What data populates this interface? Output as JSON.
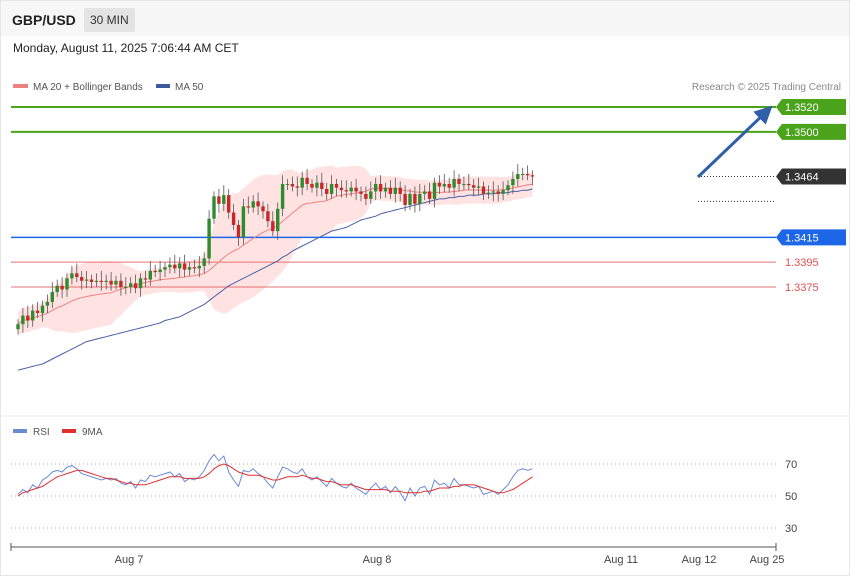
{
  "header": {
    "symbol": "GBP/USD",
    "timeframe": "30 MIN"
  },
  "datetime": "Monday, August 11, 2025 7:06:44 AM CET",
  "legend": {
    "ma20": "MA 20 + Bollinger Bands",
    "ma50": "MA 50",
    "credit": "Research © 2025 Trading Central"
  },
  "rsi_legend": {
    "rsi": "RSI",
    "ma9": "9MA"
  },
  "colors": {
    "up": "#2e8b2e",
    "down": "#c82828",
    "ma20": "#f08080",
    "ma50": "#4a5fa8",
    "band": "#ffd9d9",
    "resistance": "#4aa31a",
    "pivot": "#1e66e8",
    "support": "#e05050",
    "arrow": "#2f5fa8",
    "rsi": "#6a8ad8",
    "rsi_ma": "#e03030"
  },
  "chart_data": [
    {
      "type": "candlestick",
      "title": "GBP/USD",
      "ylim": [
        1.3282,
        1.3542
      ],
      "y_scale_note": "",
      "current_price": 1.3464,
      "levels": [
        {
          "label": "1.3520",
          "value": 1.352,
          "kind": "resistance"
        },
        {
          "label": "1.3500",
          "value": 1.35,
          "kind": "resistance"
        },
        {
          "label": "1.3464",
          "value": 1.3464,
          "kind": "current"
        },
        {
          "label": "1.3415",
          "value": 1.3415,
          "kind": "pivot"
        },
        {
          "label": "1.3395",
          "value": 1.3395,
          "kind": "support"
        },
        {
          "label": "1.3375",
          "value": 1.3375,
          "kind": "support"
        }
      ],
      "x_ticks": [
        "Aug 7",
        "Aug 8",
        "Aug 11",
        "Aug 12",
        "Aug 25"
      ],
      "close": [
        1.3345,
        1.3352,
        1.3348,
        1.3356,
        1.3354,
        1.336,
        1.3363,
        1.3371,
        1.3376,
        1.3373,
        1.3382,
        1.3386,
        1.3383,
        1.338,
        1.3381,
        1.3379,
        1.338,
        1.3379,
        1.338,
        1.3377,
        1.338,
        1.3375,
        1.3375,
        1.3378,
        1.3374,
        1.3382,
        1.3381,
        1.3388,
        1.3387,
        1.3389,
        1.3391,
        1.3393,
        1.339,
        1.3394,
        1.3389,
        1.3391,
        1.339,
        1.3392,
        1.3398,
        1.343,
        1.3448,
        1.3442,
        1.3449,
        1.3435,
        1.3425,
        1.3415,
        1.344,
        1.3439,
        1.3444,
        1.344,
        1.3436,
        1.3428,
        1.342,
        1.3438,
        1.3458,
        1.3458,
        1.3456,
        1.3455,
        1.3463,
        1.3458,
        1.3455,
        1.3459,
        1.3454,
        1.345,
        1.3458,
        1.3455,
        1.3453,
        1.3452,
        1.3455,
        1.3452,
        1.345,
        1.3446,
        1.3452,
        1.3458,
        1.3452,
        1.3455,
        1.345,
        1.3455,
        1.345,
        1.3441,
        1.345,
        1.3442,
        1.345,
        1.3452,
        1.3446,
        1.3459,
        1.3456,
        1.3458,
        1.3455,
        1.3462,
        1.3458,
        1.3458,
        1.3457,
        1.3455,
        1.3456,
        1.345,
        1.3451,
        1.3452,
        1.345,
        1.3453,
        1.3457,
        1.3462,
        1.3466,
        1.3466,
        1.3465,
        1.3464
      ],
      "ma50": [
        1.3308,
        1.3309,
        1.331,
        1.3311,
        1.3312,
        1.3313,
        1.3315,
        1.3317,
        1.3319,
        1.3321,
        1.3323,
        1.3325,
        1.3327,
        1.3329,
        1.3331,
        1.3332,
        1.3333,
        1.3334,
        1.3335,
        1.3336,
        1.3337,
        1.3338,
        1.3339,
        1.334,
        1.3341,
        1.3342,
        1.3343,
        1.3344,
        1.3345,
        1.3346,
        1.3348,
        1.3349,
        1.335,
        1.3351,
        1.3353,
        1.3355,
        1.3357,
        1.3359,
        1.3361,
        1.3364,
        1.3367,
        1.337,
        1.3373,
        1.3376,
        1.3378,
        1.338,
        1.3382,
        1.3384,
        1.3386,
        1.3388,
        1.339,
        1.3392,
        1.3394,
        1.3396,
        1.3399,
        1.3401,
        1.3404,
        1.3406,
        1.3408,
        1.341,
        1.3412,
        1.3414,
        1.3416,
        1.3418,
        1.342,
        1.3421,
        1.3422,
        1.3423,
        1.3425,
        1.3427,
        1.3429,
        1.343,
        1.3431,
        1.3432,
        1.3434,
        1.3435,
        1.3436,
        1.3437,
        1.3438,
        1.3439,
        1.344,
        1.3441,
        1.3442,
        1.3443,
        1.3444,
        1.3445,
        1.3446,
        1.3446,
        1.3447,
        1.3447,
        1.3448,
        1.3448,
        1.3449,
        1.3449,
        1.3449,
        1.345,
        1.345,
        1.345,
        1.3451,
        1.3451,
        1.3451,
        1.3452,
        1.3452,
        1.3453,
        1.3453,
        1.3454
      ],
      "rsi": [
        51,
        54,
        52,
        57,
        55,
        60,
        62,
        65,
        66,
        65,
        68,
        69,
        67,
        64,
        63,
        62,
        61,
        60,
        61,
        60,
        61,
        58,
        57,
        59,
        55,
        60,
        59,
        63,
        62,
        63,
        64,
        65,
        62,
        64,
        59,
        61,
        60,
        62,
        66,
        72,
        76,
        72,
        75,
        65,
        60,
        56,
        66,
        65,
        67,
        64,
        62,
        58,
        55,
        62,
        68,
        67,
        65,
        64,
        67,
        62,
        60,
        62,
        59,
        56,
        61,
        58,
        56,
        55,
        58,
        55,
        53,
        51,
        55,
        58,
        54,
        56,
        52,
        56,
        52,
        47,
        55,
        50,
        55,
        56,
        51,
        60,
        57,
        58,
        55,
        61,
        57,
        57,
        56,
        55,
        56,
        51,
        52,
        53,
        51,
        54,
        57,
        62,
        66,
        67,
        66,
        67
      ],
      "rsi_ma": [
        50,
        52,
        53,
        54,
        55,
        56,
        58,
        60,
        62,
        63,
        64,
        65,
        66,
        66,
        65,
        64,
        63,
        62,
        61,
        61,
        60,
        59,
        58,
        58,
        57,
        57,
        57,
        58,
        59,
        60,
        61,
        62,
        62,
        62,
        61,
        61,
        61,
        61,
        62,
        64,
        67,
        69,
        70,
        69,
        67,
        65,
        64,
        63,
        63,
        63,
        62,
        61,
        60,
        60,
        61,
        62,
        62,
        62,
        63,
        62,
        61,
        61,
        60,
        59,
        59,
        58,
        57,
        57,
        57,
        56,
        55,
        54,
        54,
        54,
        54,
        54,
        53,
        53,
        53,
        52,
        52,
        52,
        52,
        53,
        53,
        54,
        55,
        55,
        55,
        56,
        56,
        57,
        57,
        57,
        56,
        55,
        54,
        53,
        52,
        52,
        53,
        54,
        56,
        58,
        60,
        62
      ],
      "rsi_levels": [
        70,
        50,
        30
      ]
    }
  ]
}
